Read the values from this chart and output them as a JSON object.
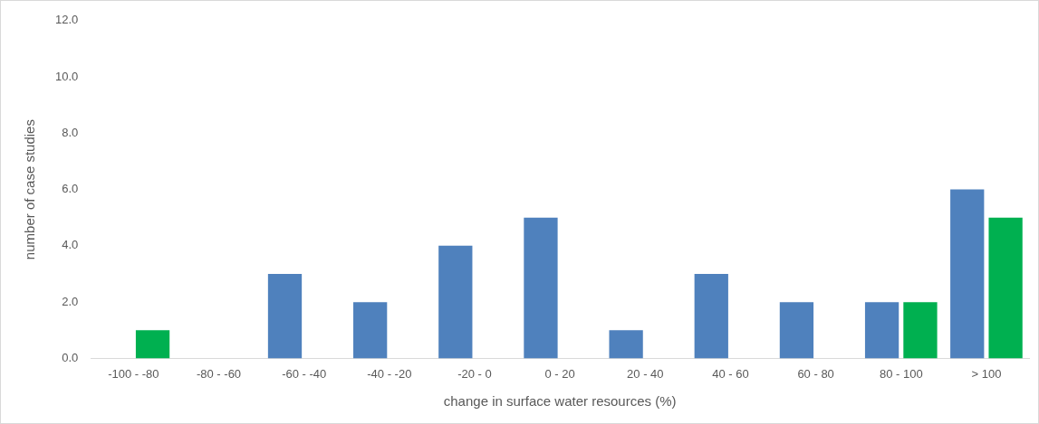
{
  "chart_data": {
    "type": "bar",
    "xlabel": "change in surface water resources (%)",
    "ylabel": "number of case studies",
    "categories": [
      "-100 - -80",
      "-80 - -60",
      "-60 - -40",
      "-40 - -20",
      "-20 - 0",
      "0 - 20",
      "20 - 40",
      "40 - 60",
      "60 - 80",
      "80 - 100",
      "> 100"
    ],
    "series": [
      {
        "color": "#4f81bd",
        "values": [
          0,
          0,
          3,
          2,
          4,
          5,
          1,
          3,
          2,
          2,
          6
        ]
      },
      {
        "color": "#00b050",
        "values": [
          1,
          0,
          0,
          0,
          0,
          0,
          0,
          0,
          0,
          2,
          5
        ]
      }
    ],
    "ylim": [
      0,
      12
    ],
    "yticks": [
      {
        "value": 0,
        "label": "0.0"
      },
      {
        "value": 2,
        "label": "2.0"
      },
      {
        "value": 4,
        "label": "4.0"
      },
      {
        "value": 6,
        "label": "6.0"
      },
      {
        "value": 8,
        "label": "8.0"
      },
      {
        "value": 10,
        "label": "10.0"
      },
      {
        "value": 12,
        "label": "12.0"
      }
    ],
    "grid": false,
    "legend": false
  }
}
